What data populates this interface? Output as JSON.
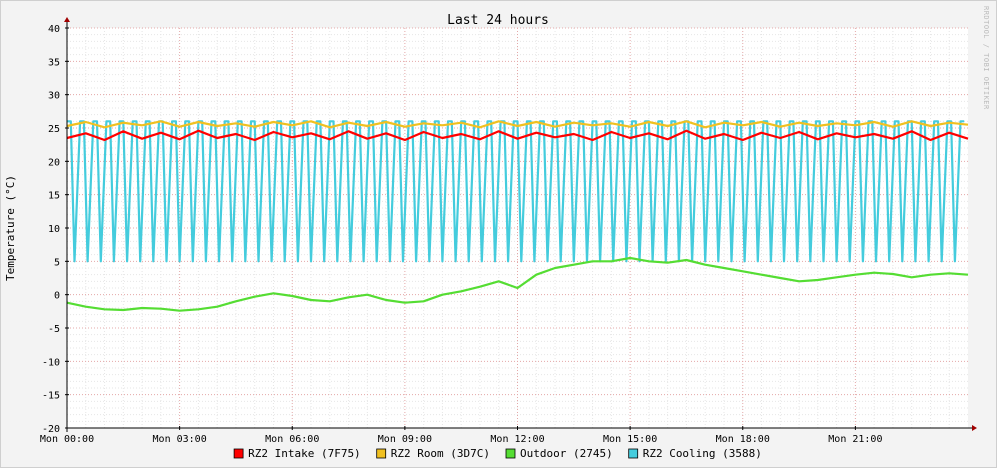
{
  "watermark": "RRDTOOL / TOBI OETIKER",
  "chart_data": {
    "type": "line",
    "title": "Last 24 hours",
    "ylabel": "Temperature (°C)",
    "xlabel": "",
    "ylim": [
      -20,
      40
    ],
    "xlim_hours": [
      0,
      24
    ],
    "yticks": [
      40,
      35,
      30,
      25,
      20,
      15,
      10,
      5,
      0,
      -5,
      -10,
      -15,
      -20
    ],
    "xticks": [
      {
        "hour": 0,
        "label": "Mon 00:00"
      },
      {
        "hour": 3,
        "label": "Mon 03:00"
      },
      {
        "hour": 6,
        "label": "Mon 06:00"
      },
      {
        "hour": 9,
        "label": "Mon 09:00"
      },
      {
        "hour": 12,
        "label": "Mon 12:00"
      },
      {
        "hour": 15,
        "label": "Mon 15:00"
      },
      {
        "hour": 18,
        "label": "Mon 18:00"
      },
      {
        "hour": 21,
        "label": "Mon 21:00"
      }
    ],
    "grid": true,
    "legend_position": "bottom-center",
    "series": [
      {
        "name": "RZ2 Intake (7F75)",
        "color": "#ff0000",
        "x_hours": [
          0.0,
          0.5,
          1.0,
          1.5,
          2.0,
          2.5,
          3.0,
          3.5,
          4.0,
          4.5,
          5.0,
          5.5,
          6.0,
          6.5,
          7.0,
          7.5,
          8.0,
          8.5,
          9.0,
          9.5,
          10.0,
          10.5,
          11.0,
          11.5,
          12.0,
          12.5,
          13.0,
          13.5,
          14.0,
          14.5,
          15.0,
          15.5,
          16.0,
          16.5,
          17.0,
          17.5,
          18.0,
          18.5,
          19.0,
          19.5,
          20.0,
          20.5,
          21.0,
          21.5,
          22.0,
          22.5,
          23.0,
          23.5,
          24.0
        ],
        "values": [
          23.5,
          24.2,
          23.2,
          24.5,
          23.4,
          24.3,
          23.3,
          24.6,
          23.5,
          24.1,
          23.2,
          24.4,
          23.6,
          24.2,
          23.3,
          24.5,
          23.4,
          24.2,
          23.2,
          24.4,
          23.5,
          24.1,
          23.3,
          24.5,
          23.4,
          24.3,
          23.6,
          24.1,
          23.2,
          24.4,
          23.5,
          24.2,
          23.3,
          24.6,
          23.4,
          24.1,
          23.2,
          24.3,
          23.5,
          24.4,
          23.3,
          24.2,
          23.6,
          24.1,
          23.4,
          24.5,
          23.2,
          24.3,
          23.4
        ]
      },
      {
        "name": "RZ2 Room (3D7C)",
        "color": "#f0c020",
        "x_hours": [
          0.0,
          0.5,
          1.0,
          1.5,
          2.0,
          2.5,
          3.0,
          3.5,
          4.0,
          4.5,
          5.0,
          5.5,
          6.0,
          6.5,
          7.0,
          7.5,
          8.0,
          8.5,
          9.0,
          9.5,
          10.0,
          10.5,
          11.0,
          11.5,
          12.0,
          12.5,
          13.0,
          13.5,
          14.0,
          14.5,
          15.0,
          15.5,
          16.0,
          16.5,
          17.0,
          17.5,
          18.0,
          18.5,
          19.0,
          19.5,
          20.0,
          20.5,
          21.0,
          21.5,
          22.0,
          22.5,
          23.0,
          23.5,
          24.0
        ],
        "values": [
          25.3,
          25.9,
          25.1,
          25.8,
          25.4,
          26.0,
          25.2,
          25.9,
          25.3,
          25.7,
          25.2,
          25.9,
          25.4,
          26.0,
          25.1,
          25.8,
          25.3,
          25.9,
          25.2,
          25.7,
          25.4,
          25.8,
          25.1,
          26.0,
          25.3,
          25.9,
          25.2,
          25.8,
          25.4,
          25.7,
          25.2,
          25.9,
          25.3,
          26.0,
          25.1,
          25.8,
          25.4,
          25.9,
          25.2,
          25.8,
          25.3,
          25.7,
          25.4,
          25.9,
          25.2,
          26.0,
          25.3,
          25.8,
          25.5
        ]
      },
      {
        "name": "Outdoor (2745)",
        "color": "#55dd33",
        "x_hours": [
          0.0,
          0.5,
          1.0,
          1.5,
          2.0,
          2.5,
          3.0,
          3.5,
          4.0,
          4.5,
          5.0,
          5.5,
          6.0,
          6.5,
          7.0,
          7.5,
          8.0,
          8.5,
          9.0,
          9.5,
          10.0,
          10.5,
          11.0,
          11.5,
          12.0,
          12.5,
          13.0,
          13.5,
          14.0,
          14.5,
          15.0,
          15.5,
          16.0,
          16.5,
          17.0,
          17.5,
          18.0,
          18.5,
          19.0,
          19.5,
          20.0,
          20.5,
          21.0,
          21.5,
          22.0,
          22.5,
          23.0,
          23.5,
          24.0
        ],
        "values": [
          -1.2,
          -1.8,
          -2.2,
          -2.3,
          -2.0,
          -2.1,
          -2.4,
          -2.2,
          -1.8,
          -1.0,
          -0.3,
          0.2,
          -0.2,
          -0.8,
          -1.0,
          -0.4,
          0.0,
          -0.8,
          -1.2,
          -1.0,
          0.0,
          0.5,
          1.2,
          2.0,
          1.0,
          3.0,
          4.0,
          4.5,
          5.0,
          5.0,
          5.5,
          5.0,
          4.8,
          5.2,
          4.5,
          4.0,
          3.5,
          3.0,
          2.5,
          2.0,
          2.2,
          2.6,
          3.0,
          3.3,
          3.1,
          2.6,
          3.0,
          3.2,
          3.0
        ]
      },
      {
        "name": "RZ2 Cooling (3588)",
        "color": "#44ccdd",
        "x_hours": [
          0.0,
          0.1,
          0.2,
          0.35,
          0.45,
          0.55,
          0.7,
          0.8,
          0.9,
          1.05,
          1.15,
          1.25,
          1.4,
          1.5,
          1.6,
          1.75,
          1.85,
          1.95,
          2.1,
          2.2,
          2.3,
          2.45,
          2.55,
          2.65,
          2.8,
          2.9,
          3.0,
          3.15,
          3.25,
          3.35,
          3.5,
          3.6,
          3.7,
          3.85,
          3.95,
          4.05,
          4.2,
          4.3,
          4.4,
          4.55,
          4.65,
          4.75,
          4.9,
          5.0,
          5.1,
          5.25,
          5.35,
          5.45,
          5.6,
          5.7,
          5.8,
          5.95,
          6.05,
          6.15,
          6.3,
          6.4,
          6.5,
          6.65,
          6.75,
          6.85,
          7.0,
          7.1,
          7.2,
          7.35,
          7.45,
          7.55,
          7.7,
          7.8,
          7.9,
          8.05,
          8.15,
          8.25,
          8.4,
          8.5,
          8.6,
          8.75,
          8.85,
          8.95,
          9.1,
          9.2,
          9.3,
          9.45,
          9.55,
          9.65,
          9.8,
          9.9,
          10.0,
          10.15,
          10.25,
          10.35,
          10.5,
          10.6,
          10.7,
          10.85,
          10.95,
          11.05,
          11.2,
          11.3,
          11.4,
          11.55,
          11.65,
          11.75,
          11.9,
          12.0,
          12.1,
          12.25,
          12.35,
          12.45,
          12.6,
          12.7,
          12.8,
          12.95,
          13.05,
          13.15,
          13.3,
          13.4,
          13.5,
          13.65,
          13.75,
          13.85,
          14.0,
          14.1,
          14.2,
          14.35,
          14.45,
          14.55,
          14.7,
          14.8,
          14.9,
          15.05,
          15.15,
          15.25,
          15.4,
          15.5,
          15.6,
          15.75,
          15.85,
          15.95,
          16.1,
          16.2,
          16.3,
          16.45,
          16.55,
          16.65,
          16.8,
          16.9,
          17.0,
          17.15,
          17.25,
          17.35,
          17.5,
          17.6,
          17.7,
          17.85,
          17.95,
          18.05,
          18.2,
          18.3,
          18.4,
          18.55,
          18.65,
          18.75,
          18.9,
          19.0,
          19.1,
          19.25,
          19.35,
          19.45,
          19.6,
          19.7,
          19.8,
          19.95,
          20.05,
          20.15,
          20.3,
          20.4,
          20.5,
          20.65,
          20.75,
          20.85,
          21.0,
          21.1,
          21.2,
          21.35,
          21.45,
          21.55,
          21.7,
          21.8,
          21.9,
          22.05,
          22.15,
          22.25,
          22.4,
          22.5,
          22.6,
          22.75,
          22.85,
          22.95,
          23.1,
          23.2,
          23.3,
          23.45,
          23.55,
          23.65,
          23.8,
          23.9
        ],
        "values": [
          26,
          26,
          5,
          26,
          26,
          5,
          26,
          26,
          5,
          26,
          26,
          5,
          26,
          26,
          5,
          26,
          26,
          5,
          26,
          26,
          5,
          26,
          26,
          5,
          26,
          26,
          5,
          26,
          26,
          5,
          26,
          26,
          5,
          26,
          26,
          5,
          26,
          26,
          5,
          26,
          26,
          5,
          26,
          26,
          5,
          26,
          26,
          5,
          26,
          26,
          5,
          26,
          26,
          5,
          26,
          26,
          5,
          26,
          26,
          5,
          26,
          26,
          5,
          26,
          26,
          5,
          26,
          26,
          5,
          26,
          26,
          5,
          26,
          26,
          5,
          26,
          26,
          5,
          26,
          26,
          5,
          26,
          26,
          5,
          26,
          26,
          5,
          26,
          26,
          5,
          26,
          26,
          5,
          26,
          26,
          5,
          26,
          26,
          5,
          26,
          26,
          5,
          26,
          26,
          5,
          26,
          26,
          5,
          26,
          26,
          5,
          26,
          26,
          5,
          26,
          26,
          5,
          26,
          26,
          5,
          26,
          26,
          5,
          26,
          26,
          5,
          26,
          26,
          5,
          26,
          26,
          5,
          26,
          26,
          5,
          26,
          26,
          5,
          26,
          26,
          5,
          26,
          26,
          5,
          26,
          26,
          5,
          26,
          26,
          5,
          26,
          26,
          5,
          26,
          26,
          5,
          26,
          26,
          5,
          26,
          26,
          5,
          26,
          26,
          5,
          26,
          26,
          5,
          26,
          26,
          5,
          26,
          26,
          5,
          26,
          26,
          5,
          26,
          26,
          5,
          26,
          26,
          5,
          26,
          26,
          5,
          26,
          26,
          5,
          26,
          26,
          5,
          26,
          26,
          5,
          26,
          26,
          5,
          26,
          26,
          5,
          26,
          26,
          5,
          26,
          26
        ]
      }
    ]
  }
}
